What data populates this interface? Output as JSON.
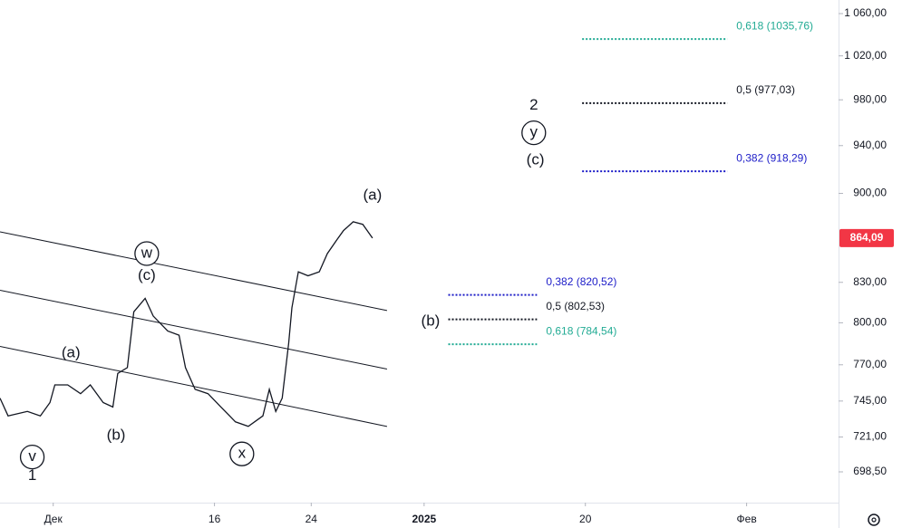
{
  "chart_data": {
    "type": "line",
    "log_scale": true,
    "xlim": [
      -3.3,
      48.7
    ],
    "ylim": [
      679.2,
      1073.2
    ],
    "xticks": [
      {
        "value": 0,
        "label": "Дек"
      },
      {
        "value": 10,
        "label": "16"
      },
      {
        "value": 16,
        "label": "24"
      },
      {
        "value": 23,
        "label": "2025"
      },
      {
        "value": 33,
        "label": "20"
      },
      {
        "value": 43,
        "label": "Фев"
      }
    ],
    "yticks": [
      {
        "value": 1060,
        "label": "1 060,00"
      },
      {
        "value": 1020,
        "label": "1 020,00"
      },
      {
        "value": 980,
        "label": "980,00"
      },
      {
        "value": 940,
        "label": "940,00"
      },
      {
        "value": 900,
        "label": "900,00"
      },
      {
        "value": 830,
        "label": "830,00"
      },
      {
        "value": 800,
        "label": "800,00"
      },
      {
        "value": 770,
        "label": "770,00"
      },
      {
        "value": 745,
        "label": "745,00"
      },
      {
        "value": 721,
        "label": "721,00"
      },
      {
        "value": 698.5,
        "label": "698,50"
      }
    ],
    "series": [
      {
        "color": "#131722",
        "x": [
          -3.3,
          -2.8,
          -1.6,
          -0.8,
          -0.2,
          0.1,
          0.9,
          1.7,
          2.3,
          3.1,
          3.7,
          4.0,
          4.6,
          5.0,
          5.7,
          6.2,
          7.1,
          7.8,
          8.2,
          8.8,
          9.6,
          10.4,
          11.3,
          12.1,
          13.0,
          13.4,
          13.8,
          14.2,
          14.6,
          14.8,
          15.2,
          15.8,
          16.5,
          17.0,
          17.6,
          18.0,
          18.6,
          19.2,
          19.8
        ],
        "values": [
          747,
          735,
          738,
          735,
          744,
          756,
          756,
          750,
          756,
          744,
          741,
          764,
          768,
          808,
          818,
          805,
          794,
          791,
          768,
          753,
          750,
          741,
          731,
          728,
          735,
          753,
          738,
          747,
          785,
          811,
          838,
          835,
          838,
          852,
          863,
          870,
          877,
          875,
          864.09
        ]
      }
    ],
    "last_price": {
      "value": 864.09,
      "label": "864,09",
      "color": "#f23645"
    },
    "trend_lines": [
      {
        "x": [
          -3.3,
          20.7
        ],
        "y": [
          869,
          809
        ]
      },
      {
        "x": [
          -3.3,
          20.7
        ],
        "y": [
          824,
          767
        ]
      },
      {
        "x": [
          -3.3,
          20.7
        ],
        "y": [
          783,
          728
        ]
      }
    ],
    "fib_levels": [
      {
        "value": 1035.76,
        "label": "0,618 (1035,76)",
        "color": "#22ab94",
        "x": [
          32.8,
          41.8
        ]
      },
      {
        "value": 977.03,
        "label": "0,5 (977,03)",
        "color": "#131722",
        "x": [
          32.8,
          41.8
        ]
      },
      {
        "value": 918.29,
        "label": "0,382 (918,29)",
        "color": "#1c1cc8",
        "x": [
          32.8,
          41.8
        ]
      },
      {
        "value": 820.52,
        "label": "0,382 (820,52)",
        "color": "#1c1cc8",
        "x": [
          24.5,
          30.0
        ]
      },
      {
        "value": 802.53,
        "label": "0,5 (802,53)",
        "color": "#131722",
        "x": [
          24.5,
          30.0
        ]
      },
      {
        "value": 784.54,
        "label": "0,618 (784,54)",
        "color": "#22ab94",
        "x": [
          24.5,
          30.0
        ]
      }
    ],
    "wave_labels": [
      {
        "text": "(a)",
        "x": 19.8,
        "y": 898,
        "circled": false
      },
      {
        "text": "2",
        "x": 29.8,
        "y": 975,
        "circled": false
      },
      {
        "text": "y",
        "x": 29.8,
        "y": 951,
        "circled": true
      },
      {
        "text": "(c)",
        "x": 29.9,
        "y": 927.6,
        "circled": false
      },
      {
        "text": "(b)",
        "x": 23.4,
        "y": 801,
        "circled": false
      },
      {
        "text": "w",
        "x": 5.8,
        "y": 852,
        "circled": true
      },
      {
        "text": "(c)",
        "x": 5.8,
        "y": 835,
        "circled": false
      },
      {
        "text": "(a)",
        "x": 1.1,
        "y": 778,
        "circled": false
      },
      {
        "text": "(b)",
        "x": 3.9,
        "y": 722,
        "circled": false
      },
      {
        "text": "x",
        "x": 11.7,
        "y": 710,
        "circled": true
      },
      {
        "text": "v",
        "x": -1.3,
        "y": 708,
        "circled": true
      },
      {
        "text": "1",
        "x": -1.3,
        "y": 696,
        "circled": false
      }
    ]
  }
}
